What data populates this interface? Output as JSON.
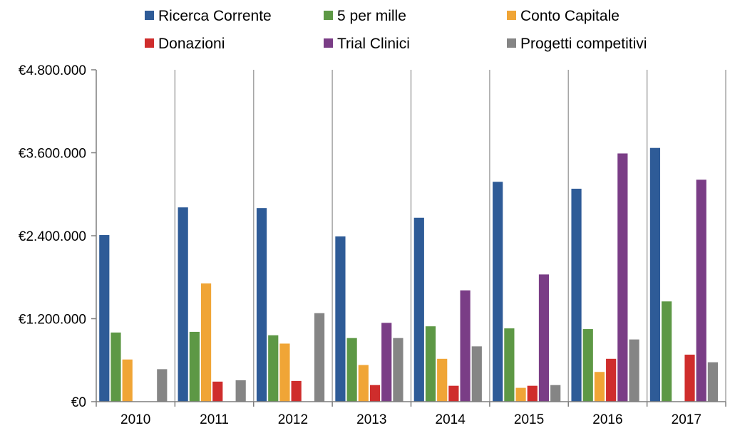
{
  "chart_data": {
    "type": "bar",
    "categories": [
      "2010",
      "2011",
      "2012",
      "2013",
      "2014",
      "2015",
      "2016",
      "2017"
    ],
    "ylim": [
      0,
      4800000
    ],
    "yticks": [
      0,
      1200000,
      2400000,
      3600000,
      4800000
    ],
    "ytick_labels": [
      "€0",
      "€1.200.000",
      "€2.400.000",
      "€3.600.000",
      "€4.800.000"
    ],
    "grid": "vertical category separators",
    "legend_position": "top",
    "series": [
      {
        "name": "Ricerca Corrente",
        "color": "#2e5b97",
        "values": [
          2410000,
          2810000,
          2800000,
          2390000,
          2660000,
          3180000,
          3080000,
          3670000
        ]
      },
      {
        "name": "5 per mille",
        "color": "#5d9845",
        "values": [
          1000000,
          1010000,
          960000,
          920000,
          1090000,
          1060000,
          1050000,
          1450000
        ]
      },
      {
        "name": "Conto Capitale",
        "color": "#f0a536",
        "values": [
          610000,
          1710000,
          840000,
          530000,
          620000,
          200000,
          430000,
          0
        ]
      },
      {
        "name": "Donazioni",
        "color": "#cf2d2c",
        "values": [
          0,
          290000,
          300000,
          240000,
          230000,
          230000,
          620000,
          680000
        ]
      },
      {
        "name": "Trial Clinici",
        "color": "#7a3d86",
        "values": [
          0,
          0,
          0,
          1140000,
          1610000,
          1840000,
          3590000,
          3210000
        ]
      },
      {
        "name": "Progetti competitivi",
        "color": "#858585",
        "values": [
          470000,
          310000,
          1280000,
          920000,
          800000,
          240000,
          900000,
          570000
        ]
      }
    ]
  }
}
